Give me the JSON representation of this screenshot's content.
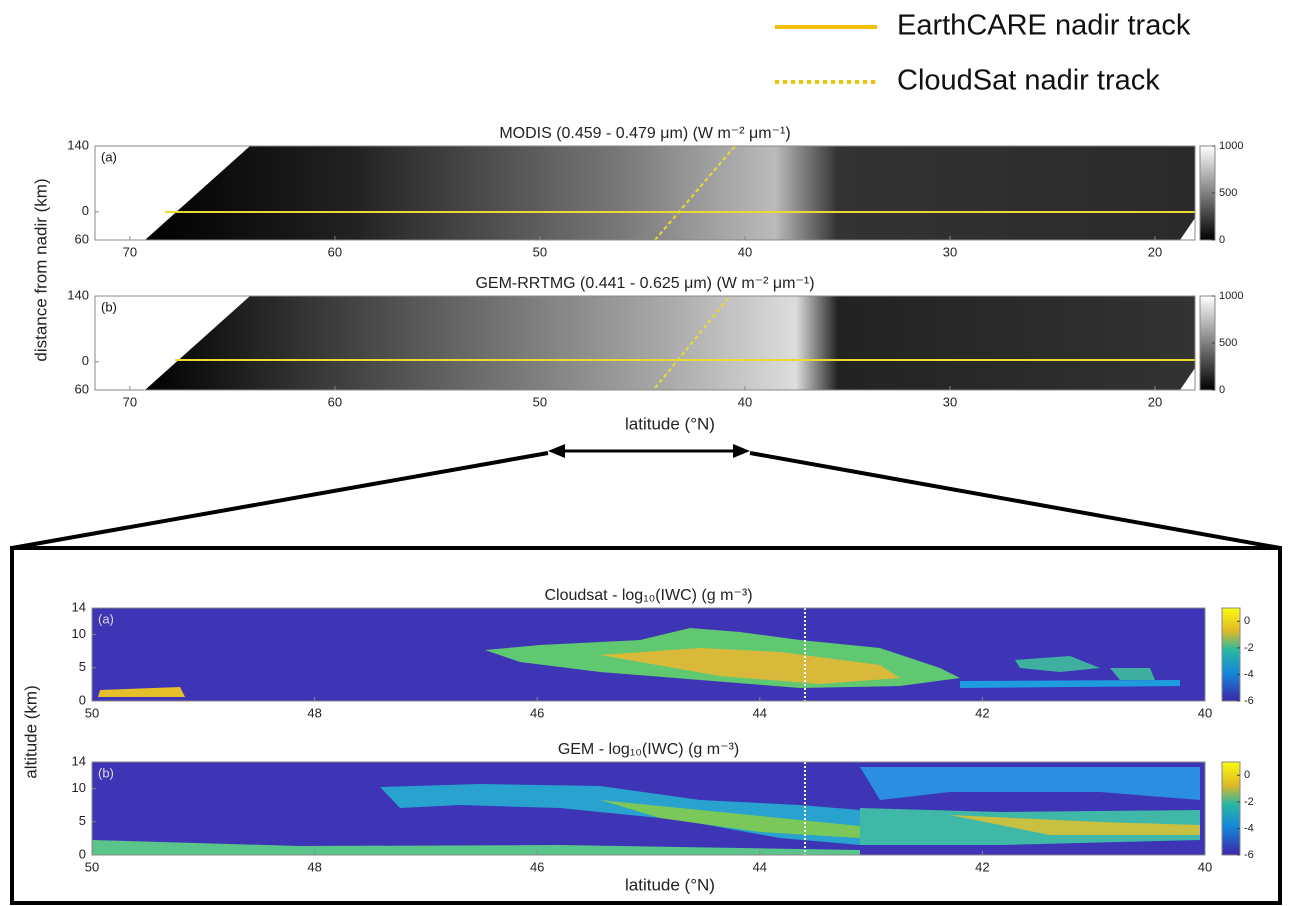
{
  "legend": [
    {
      "label": "EarthCARE nadir track",
      "color": "#f5c000"
    },
    {
      "label": "CloudSat nadir track",
      "color": "#f5c000"
    }
  ],
  "upper": {
    "ylabel": "distance from nadir (km)",
    "xlabel": "latitude (°N)"
  },
  "lower": {
    "ylabel": "altitude (km)",
    "xlabel": "latitude (°N)"
  },
  "panels": [
    {
      "title": "MODIS (0.459 - 0.479 μm) (W m⁻² μm⁻¹)",
      "panel_label": "(a)",
      "xlim": [
        71.7,
        18.05
      ],
      "xticks": [
        70,
        60,
        50,
        40,
        30,
        20
      ],
      "ylim": [
        -60,
        140
      ],
      "yticks": [
        140,
        0,
        {
          "value": -60,
          "label": "60"
        }
      ],
      "clim": [
        0,
        1000
      ],
      "cticks": [
        1000,
        500,
        0
      ]
    },
    {
      "title": "GEM-RRTMG (0.441 - 0.625 μm) (W m⁻² μm⁻¹)",
      "panel_label": "(b)",
      "xlim": [
        71.7,
        18.05
      ],
      "xticks": [
        70,
        60,
        50,
        40,
        30,
        20
      ],
      "ylim": [
        -60,
        140
      ],
      "yticks": [
        140,
        0,
        {
          "value": -60,
          "label": "60"
        }
      ],
      "clim": [
        0,
        1000
      ],
      "cticks": [
        1000,
        500,
        0
      ]
    },
    {
      "title": "Cloudsat - log₁₀(IWC) (g m⁻³)",
      "panel_label": "(a)",
      "xlim": [
        50,
        40
      ],
      "xticks": [
        50,
        48,
        46,
        44,
        42,
        40
      ],
      "ylim": [
        0,
        14
      ],
      "yticks": [
        14,
        10,
        5,
        0
      ],
      "clim": [
        -6,
        1
      ],
      "cticks": [
        0,
        -2,
        -4,
        -6
      ]
    },
    {
      "title": "GEM - log₁₀(IWC) (g m⁻³)",
      "panel_label": "(b)",
      "xlim": [
        50,
        40
      ],
      "xticks": [
        50,
        48,
        46,
        44,
        42,
        40
      ],
      "ylim": [
        0,
        14
      ],
      "yticks": [
        14,
        10,
        5,
        0
      ],
      "clim": [
        -6,
        1
      ],
      "cticks": [
        0,
        -2,
        -4,
        -6
      ]
    }
  ]
}
